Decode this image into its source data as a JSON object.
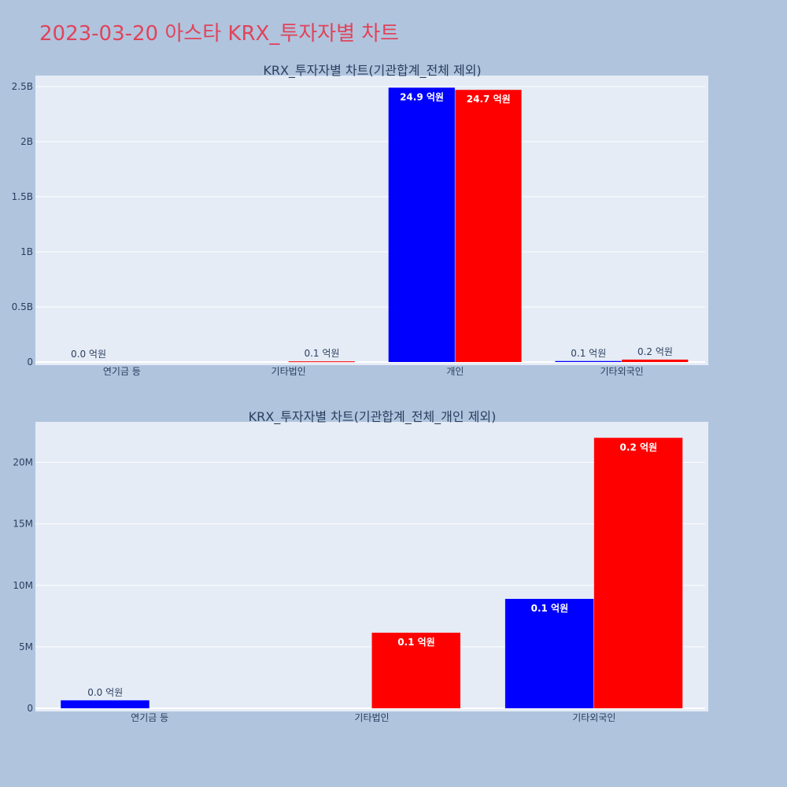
{
  "page": {
    "title": "2023-03-20 아스타 KRX_투자자별 차트"
  },
  "colors": {
    "background": "#b0c4de",
    "plot_background": "#e5ecf6",
    "title": "#e0445a",
    "series_a": "#0000ff",
    "series_b": "#ff0000"
  },
  "chart_data": [
    {
      "type": "bar",
      "title": "KRX_투자자별 차트(기관합계_전체 제외)",
      "categories": [
        "연기금 등",
        "기타법인",
        "개인",
        "기타외국인"
      ],
      "series": [
        {
          "color": "#0000ff",
          "values": [
            0,
            0,
            2490000000,
            8900000
          ],
          "labels": [
            "0.0 억원",
            "",
            "24.9 억원",
            "0.1 억원"
          ]
        },
        {
          "color": "#ff0000",
          "values": [
            0,
            6100000,
            2470000000,
            22000000
          ],
          "labels": [
            "",
            "0.1 억원",
            "24.7 억원",
            "0.2 억원"
          ]
        }
      ],
      "ylim": [
        0,
        2600000000
      ],
      "yticks": [
        {
          "value": 0,
          "label": "0"
        },
        {
          "value": 500000000,
          "label": "0.5B"
        },
        {
          "value": 1000000000,
          "label": "1B"
        },
        {
          "value": 1500000000,
          "label": "1.5B"
        },
        {
          "value": 2000000000,
          "label": "2B"
        },
        {
          "value": 2500000000,
          "label": "2.5B"
        }
      ],
      "grid": true,
      "legend": "none"
    },
    {
      "type": "bar",
      "title": "KRX_투자자별 차트(기관합계_전체_개인 제외)",
      "categories": [
        "연기금 등",
        "기타법인",
        "기타외국인"
      ],
      "series": [
        {
          "color": "#0000ff",
          "values": [
            650000,
            0,
            8900000
          ],
          "labels": [
            "0.0 억원",
            "",
            "0.1 억원"
          ]
        },
        {
          "color": "#ff0000",
          "values": [
            0,
            6150000,
            22000000
          ],
          "labels": [
            "",
            "0.1 억원",
            "0.2 억원"
          ]
        }
      ],
      "ylim": [
        0,
        23300000
      ],
      "yticks": [
        {
          "value": 0,
          "label": "0"
        },
        {
          "value": 5000000,
          "label": "5M"
        },
        {
          "value": 10000000,
          "label": "10M"
        },
        {
          "value": 15000000,
          "label": "15M"
        },
        {
          "value": 20000000,
          "label": "20M"
        }
      ],
      "grid": true,
      "legend": "none"
    }
  ]
}
